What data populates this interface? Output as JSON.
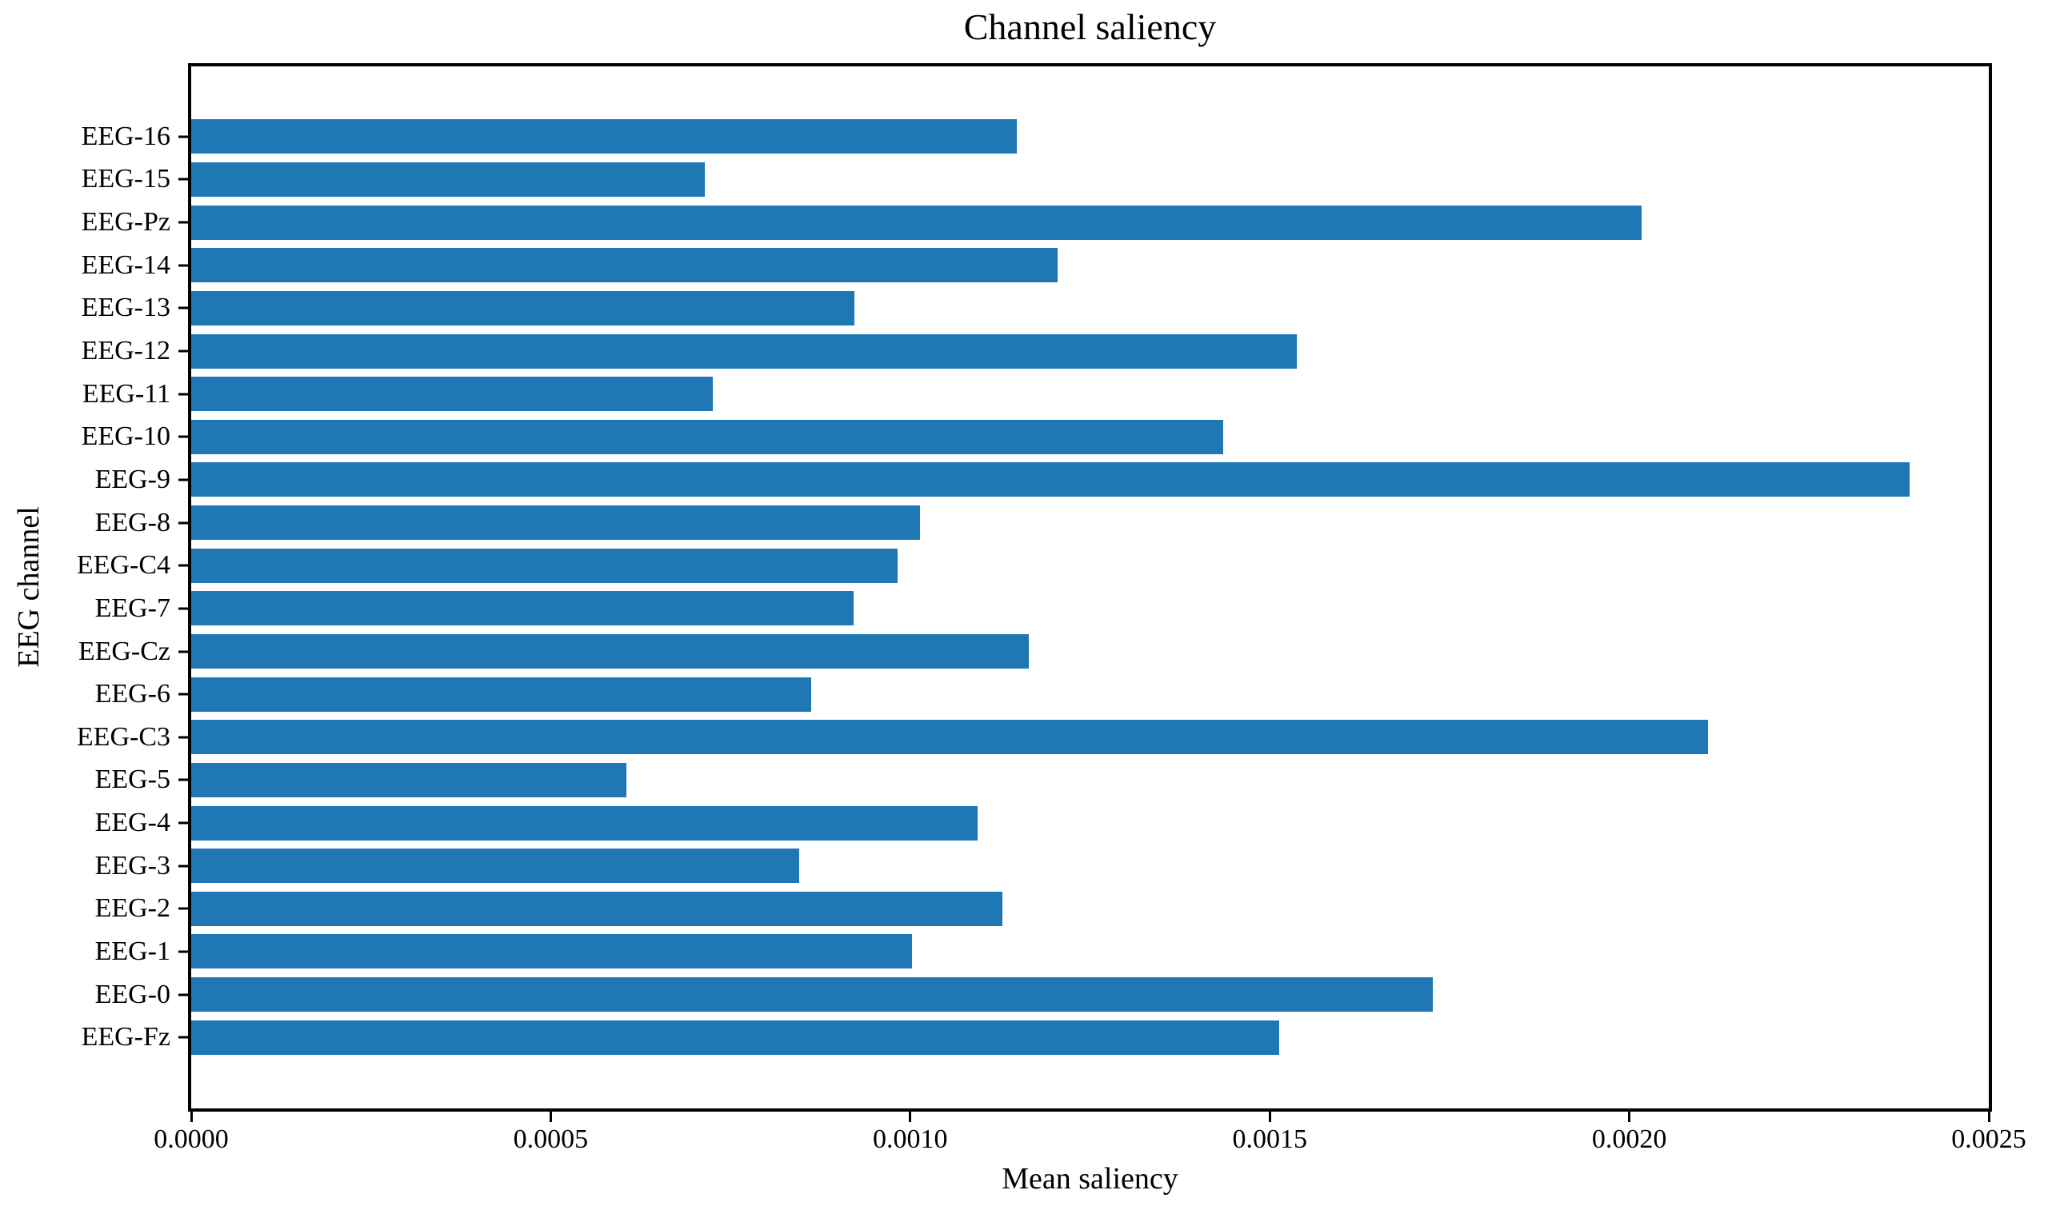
{
  "chart_data": {
    "type": "bar",
    "orientation": "horizontal",
    "title": "Channel saliency",
    "xlabel": "Mean saliency",
    "ylabel": "EEG channel",
    "xlim": [
      0.0,
      0.0025
    ],
    "xtick_values": [
      0.0,
      0.0005,
      0.001,
      0.0015,
      0.002,
      0.0025
    ],
    "xtick_labels": [
      "0.0000",
      "0.0005",
      "0.0010",
      "0.0015",
      "0.0020",
      "0.0025"
    ],
    "grid": false,
    "legend": "none",
    "bar_color": "#1f77b4",
    "categories_top_to_bottom": [
      "EEG-16",
      "EEG-15",
      "EEG-Pz",
      "EEG-14",
      "EEG-13",
      "EEG-12",
      "EEG-11",
      "EEG-10",
      "EEG-9",
      "EEG-8",
      "EEG-C4",
      "EEG-7",
      "EEG-Cz",
      "EEG-6",
      "EEG-C3",
      "EEG-5",
      "EEG-4",
      "EEG-3",
      "EEG-2",
      "EEG-1",
      "EEG-0",
      "EEG-Fz"
    ],
    "values": [
      0.001148,
      0.000714,
      0.002017,
      0.001205,
      0.000922,
      0.001538,
      0.000725,
      0.001435,
      0.00239,
      0.001014,
      0.000982,
      0.000921,
      0.001165,
      0.000862,
      0.002109,
      0.000605,
      0.001094,
      0.000846,
      0.001128,
      0.001003,
      0.001727,
      0.001513
    ]
  }
}
